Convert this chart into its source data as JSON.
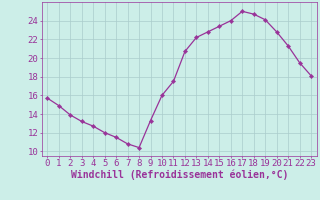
{
  "x": [
    0,
    1,
    2,
    3,
    4,
    5,
    6,
    7,
    8,
    9,
    10,
    11,
    12,
    13,
    14,
    15,
    16,
    17,
    18,
    19,
    20,
    21,
    22,
    23
  ],
  "y": [
    15.7,
    14.9,
    13.9,
    13.2,
    12.7,
    12.0,
    11.5,
    10.8,
    10.4,
    13.3,
    16.0,
    17.5,
    20.7,
    22.2,
    22.8,
    23.4,
    24.0,
    25.0,
    24.7,
    24.1,
    22.8,
    21.3,
    19.5,
    18.1
  ],
  "line_color": "#993399",
  "marker": "D",
  "marker_size": 2.2,
  "bg_color": "#cceee8",
  "grid_color": "#aacccc",
  "xlabel": "Windchill (Refroidissement éolien,°C)",
  "xlabel_color": "#993399",
  "tick_color": "#993399",
  "ylim": [
    9.5,
    26.0
  ],
  "xlim": [
    -0.5,
    23.5
  ],
  "yticks": [
    10,
    12,
    14,
    16,
    18,
    20,
    22,
    24
  ],
  "xticks": [
    0,
    1,
    2,
    3,
    4,
    5,
    6,
    7,
    8,
    9,
    10,
    11,
    12,
    13,
    14,
    15,
    16,
    17,
    18,
    19,
    20,
    21,
    22,
    23
  ],
  "xtick_labels": [
    "0",
    "1",
    "2",
    "3",
    "4",
    "5",
    "6",
    "7",
    "8",
    "9",
    "10",
    "11",
    "12",
    "13",
    "14",
    "15",
    "16",
    "17",
    "18",
    "19",
    "20",
    "21",
    "22",
    "23"
  ],
  "xlabel_fontsize": 7.0,
  "tick_fontsize": 6.5
}
